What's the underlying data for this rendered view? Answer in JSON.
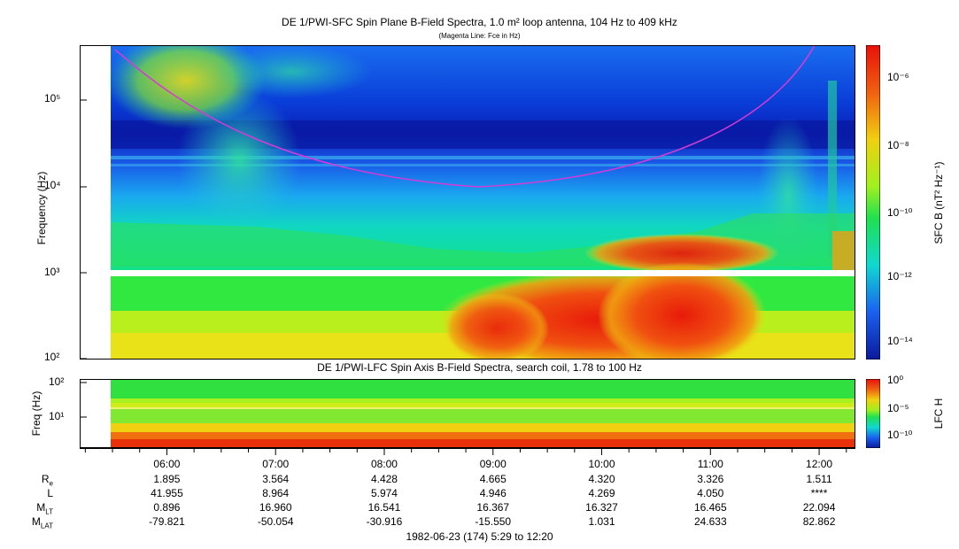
{
  "chart_data": [
    {
      "type": "heatmap",
      "title": "DE 1/PWI-SFC  Spin Plane B-Field Spectra, 1.0 m² loop antenna, 104 Hz to 409 kHz",
      "subtitle": "(Magenta Line: Fce in Hz)",
      "ylabel": "Frequency (Hz)",
      "yscale": "log",
      "ylim": [
        100,
        409000
      ],
      "ytick_labels": [
        "10²",
        "10³",
        "10⁴",
        "10⁵"
      ],
      "colorbar": {
        "label": "SFC B (nT² Hz⁻¹)",
        "scale": "log",
        "range": [
          1e-15,
          1e-05
        ],
        "tick_labels": [
          "10⁻⁶",
          "10⁻⁸",
          "10⁻¹⁰",
          "10⁻¹²",
          "10⁻¹⁴"
        ]
      },
      "fce_line": {
        "color": "#d63ad6",
        "minimum_hz": 9500,
        "minimum_time": "09:40"
      },
      "colors": {
        "low": "#0a1a9a",
        "mid": "#00e070",
        "high": "#e0200a",
        "line": "#d63ad6"
      }
    },
    {
      "type": "heatmap",
      "title": "DE 1/PWI-LFC  Spin Axis B-Field Spectra, search coil, 1.78 to 100 Hz",
      "ylabel": "Freq (Hz)",
      "yscale": "log",
      "ylim": [
        1.78,
        100
      ],
      "ytick_labels": [
        "10¹",
        "10²"
      ],
      "colorbar": {
        "label": "LFC H",
        "scale": "log",
        "range": [
          1e-12,
          1
        ],
        "tick_labels": [
          "10⁰",
          "10⁻⁵",
          "10⁻¹⁰"
        ]
      }
    }
  ],
  "time_axis": {
    "start": "05:29",
    "end": "12:20",
    "tick_labels": [
      "06:00",
      "07:00",
      "08:00",
      "09:00",
      "10:00",
      "11:00",
      "12:00"
    ],
    "caption": "1982-06-23 (174) 5:29 to 12:20"
  },
  "ephemeris": {
    "labels": [
      {
        "base": "R",
        "sub": "e"
      },
      {
        "base": "L",
        "sub": ""
      },
      {
        "base": "M",
        "sub": "LT"
      },
      {
        "base": "M",
        "sub": "LAT"
      }
    ],
    "rows": [
      [
        "1.895",
        "3.564",
        "4.428",
        "4.665",
        "4.320",
        "3.326",
        "1.511"
      ],
      [
        "41.955",
        "8.964",
        "5.974",
        "4.946",
        "4.269",
        "4.050",
        "****"
      ],
      [
        "0.896",
        "16.960",
        "16.541",
        "16.367",
        "16.327",
        "16.465",
        "22.094"
      ],
      [
        "-79.821",
        "-50.054",
        "-30.916",
        "-15.550",
        "1.031",
        "24.633",
        "82.862"
      ]
    ]
  }
}
